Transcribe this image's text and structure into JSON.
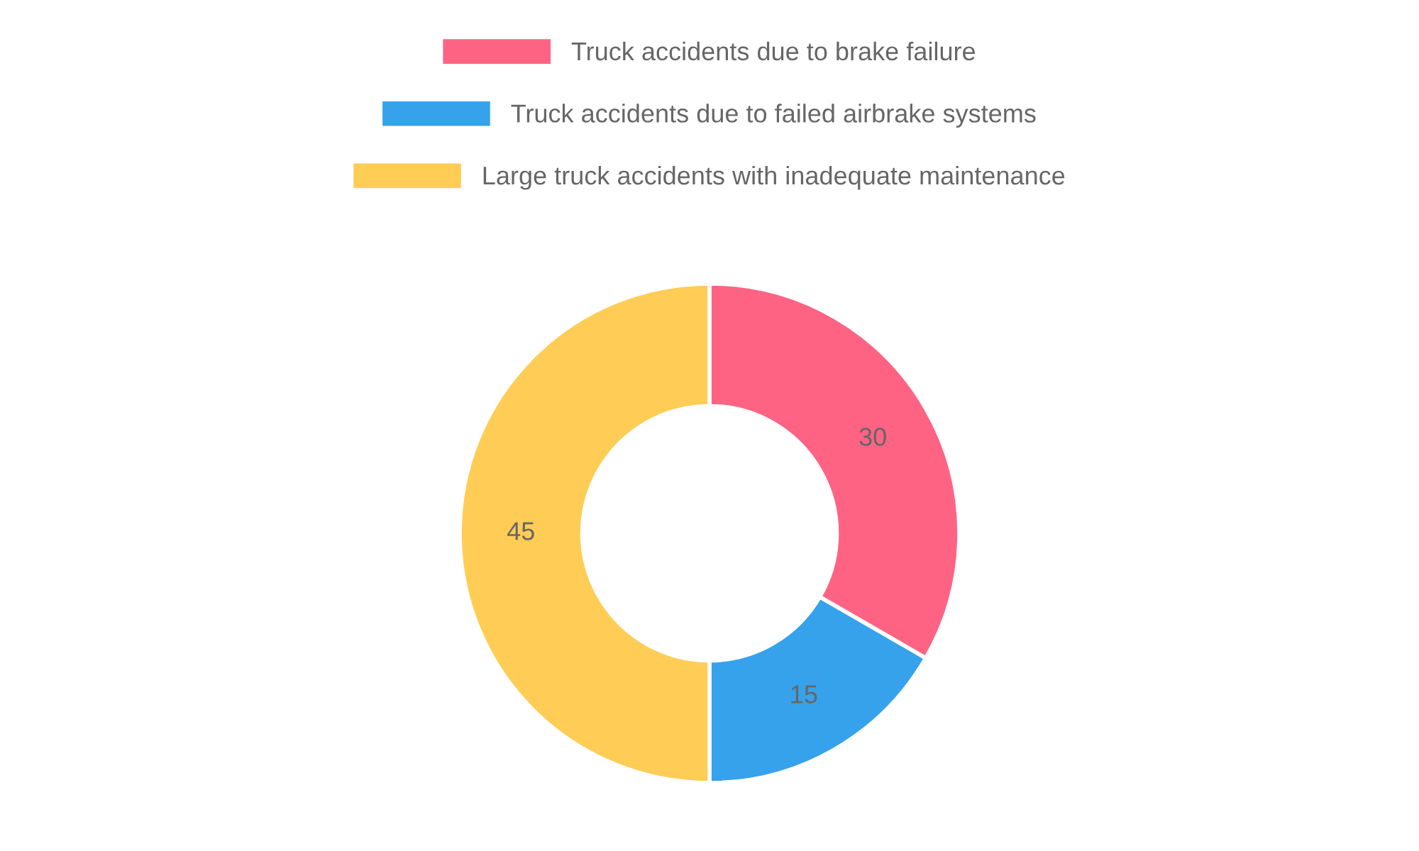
{
  "chart_data": {
    "type": "donut",
    "categories": [
      "Truck accidents due to brake failure",
      "Truck accidents due to failed airbrake systems",
      "Large truck accidents with inadequate maintenance"
    ],
    "values": [
      30,
      15,
      45
    ],
    "colors": [
      "#ff6384",
      "#36a2eb",
      "#ffcd56"
    ],
    "data_labels": true,
    "legend": "top"
  }
}
